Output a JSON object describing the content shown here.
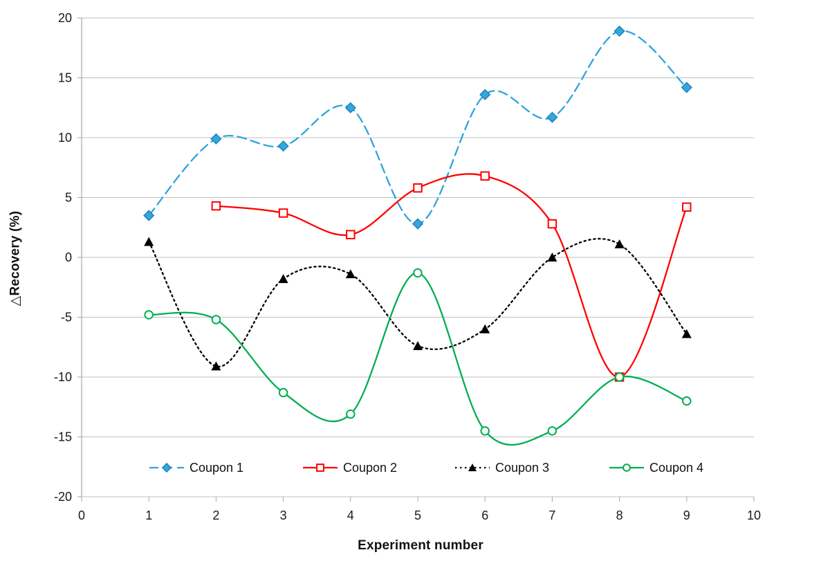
{
  "chart_data": {
    "type": "line",
    "title": "",
    "xlabel": "Experiment number",
    "ylabel": "△Recovery (%)",
    "xlim": [
      0,
      10
    ],
    "ylim": [
      -20,
      20
    ],
    "x_ticks": [
      0,
      1,
      2,
      3,
      4,
      5,
      6,
      7,
      8,
      9,
      10
    ],
    "y_ticks": [
      20,
      15,
      10,
      5,
      0,
      -5,
      -10,
      -15,
      -20
    ],
    "grid": "horizontal-only",
    "legend_position": "bottom-inside-horizontal",
    "smooth_lines": true,
    "colors": {
      "grid": "#BFBFBF",
      "axis": "#A6A6A6",
      "tick_text": "#1A1A1A",
      "coupon1_line": "#2FA3DC",
      "coupon1_marker_fill": "#38A6DE",
      "coupon1_marker_edge": "#1D86C0",
      "coupon2_line": "#FF0000",
      "coupon3_line": "#000000",
      "coupon4_line": "#00AE50",
      "open_marker_fill": "#FFFFFF"
    },
    "series": [
      {
        "name": "Coupon 1",
        "marker": "diamond-filled",
        "line_style": "dashed",
        "x": [
          1,
          2,
          3,
          4,
          5,
          6,
          7,
          8,
          9
        ],
        "values": [
          3.5,
          9.9,
          9.3,
          12.5,
          2.8,
          13.6,
          11.7,
          18.9,
          14.2
        ]
      },
      {
        "name": "Coupon 2",
        "marker": "square-open",
        "line_style": "solid",
        "x": [
          2,
          3,
          4,
          5,
          6,
          7,
          8,
          9
        ],
        "values": [
          4.3,
          3.7,
          1.9,
          5.8,
          6.8,
          2.8,
          -10.0,
          4.2
        ]
      },
      {
        "name": "Coupon 3",
        "marker": "triangle-filled",
        "line_style": "dotted",
        "x": [
          1,
          2,
          3,
          4,
          5,
          6,
          7,
          8,
          9
        ],
        "values": [
          1.3,
          -9.1,
          -1.8,
          -1.4,
          -7.4,
          -6.0,
          0.0,
          1.1,
          -6.4
        ]
      },
      {
        "name": "Coupon 4",
        "marker": "circle-open",
        "line_style": "solid",
        "x": [
          1,
          2,
          3,
          4,
          5,
          6,
          7,
          8,
          9
        ],
        "values": [
          -4.8,
          -5.2,
          -11.3,
          -13.1,
          -1.3,
          -14.5,
          -14.5,
          -10.0,
          -12.0
        ]
      }
    ]
  }
}
